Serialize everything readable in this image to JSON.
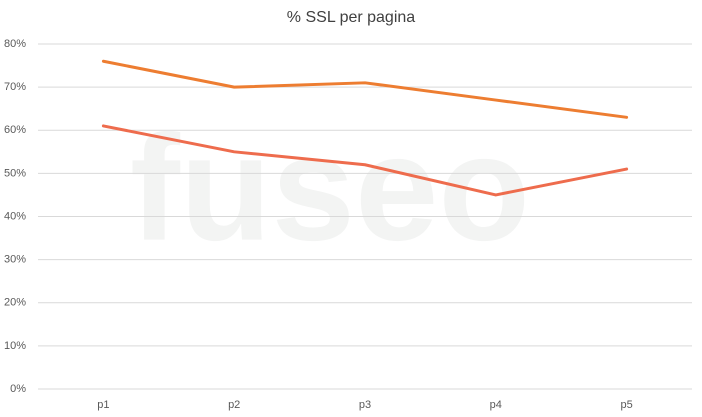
{
  "chart_data": {
    "type": "line",
    "title": "% SSL per pagina",
    "watermark": "fuseo",
    "categories": [
      "p1",
      "p2",
      "p3",
      "p4",
      "p5"
    ],
    "series": [
      {
        "color": "#ED7D31",
        "values": [
          76,
          70,
          71,
          67,
          63
        ]
      },
      {
        "color": "#EE6C4D",
        "values": [
          61,
          55,
          52,
          45,
          51
        ]
      }
    ],
    "ylim": [
      0,
      80
    ],
    "yticks": [
      {
        "value": 0,
        "label": "0%"
      },
      {
        "value": 10,
        "label": "10%"
      },
      {
        "value": 20,
        "label": "20%"
      },
      {
        "value": 30,
        "label": "30%"
      },
      {
        "value": 40,
        "label": "40%"
      },
      {
        "value": 50,
        "label": "50%"
      },
      {
        "value": 60,
        "label": "60%"
      },
      {
        "value": 70,
        "label": "70%"
      },
      {
        "value": 80,
        "label": "80%"
      }
    ],
    "grid": true
  }
}
